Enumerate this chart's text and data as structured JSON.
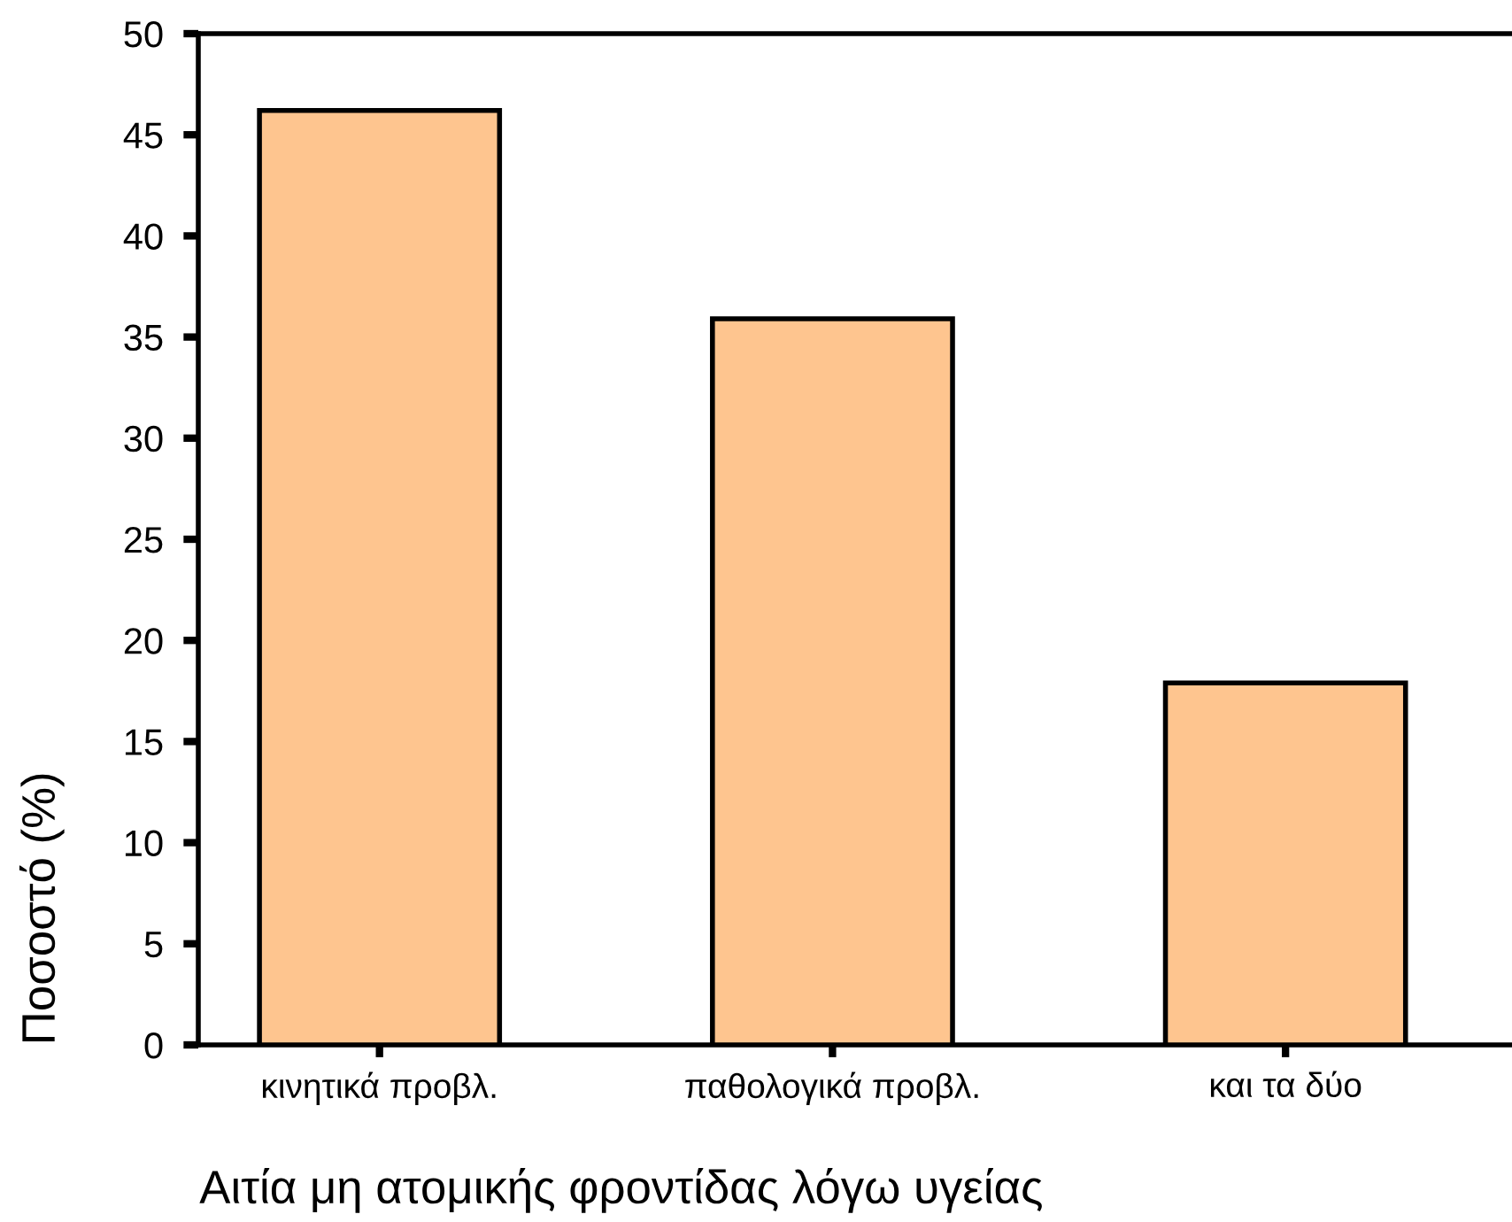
{
  "chart_data": {
    "type": "bar",
    "xlabel": "Αιτία μη ατομικής φροντίδας λόγω υγείας",
    "ylabel": "Ποσοστό (%)",
    "categories": [
      "κινητικά προβλ.",
      "παθολογικά προβλ.",
      "και τα δύο"
    ],
    "values": [
      46.2,
      35.9,
      17.9
    ],
    "color": "#fec58f",
    "ylim": [
      0,
      50
    ],
    "yticks": [
      0,
      5,
      10,
      15,
      20,
      25,
      30,
      35,
      40,
      45,
      50
    ]
  }
}
